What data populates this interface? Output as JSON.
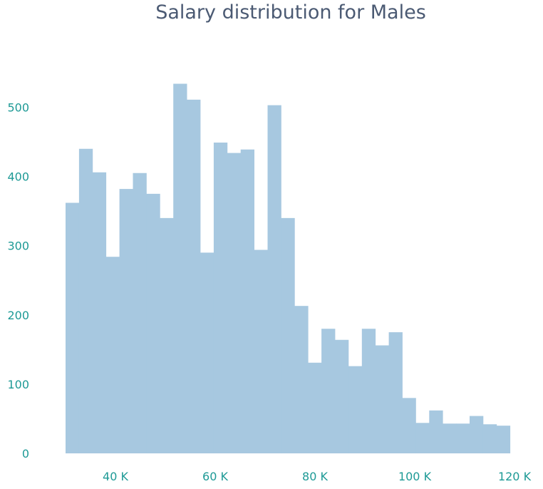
{
  "chart_data": {
    "type": "bar",
    "title": "Salary distribution for Males",
    "xlabel": "",
    "ylabel": "",
    "bin_start": 30000,
    "bin_width": 2700,
    "values": [
      362,
      440,
      406,
      284,
      382,
      405,
      375,
      340,
      534,
      511,
      290,
      449,
      434,
      439,
      294,
      503,
      340,
      213,
      131,
      180,
      164,
      126,
      180,
      156,
      175,
      80,
      44,
      62,
      43,
      43,
      54,
      42,
      40
    ],
    "xlim": [
      25000,
      125000
    ],
    "ylim": [
      0,
      590
    ],
    "x_ticks": [
      40000,
      60000,
      80000,
      100000,
      120000
    ],
    "x_tick_labels": [
      "40 K",
      "60 K",
      "80 K",
      "100 K",
      "120 K"
    ],
    "y_ticks": [
      0,
      100,
      200,
      300,
      400,
      500
    ],
    "y_tick_labels": [
      "0",
      "100",
      "200",
      "300",
      "400",
      "500"
    ],
    "bar_color": "#a7c8e0",
    "tick_color": "#1e9a96",
    "title_color": "#4b5a73",
    "grid": false,
    "legend": "none"
  }
}
